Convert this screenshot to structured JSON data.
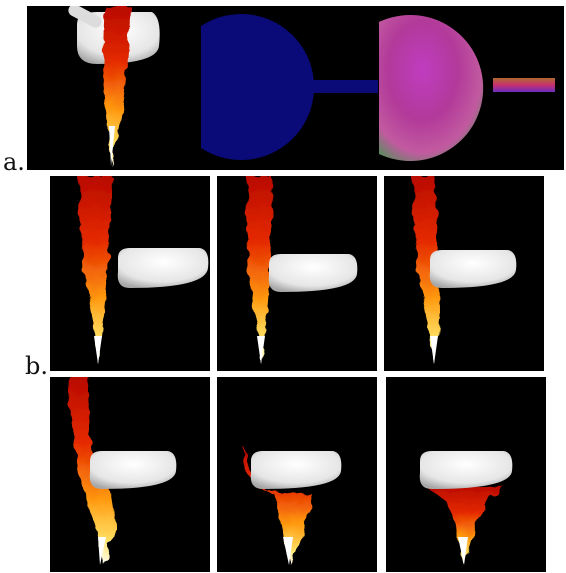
{
  "labels": {
    "a": "a.",
    "b": "b."
  },
  "colors": {
    "background": "#000000",
    "page": "#ffffff",
    "sphere_blue": "#0a0a78",
    "jet_core": "#fff6a0",
    "jet_mid": "#ff9a10",
    "jet_outer": "#d31000",
    "solid": "#e8e8e8"
  },
  "row_a": {
    "panels": [
      "smoke-render",
      "velocity-sdf-render",
      "normal-map-render"
    ]
  },
  "row_b": {
    "frames": [
      {
        "id": "b1",
        "deflection": 0.0
      },
      {
        "id": "b2",
        "deflection": 0.0
      },
      {
        "id": "b3",
        "deflection": 0.1
      },
      {
        "id": "b4",
        "deflection": 0.3
      },
      {
        "id": "b5",
        "deflection": 0.6
      },
      {
        "id": "b6",
        "deflection": 0.9
      }
    ]
  }
}
